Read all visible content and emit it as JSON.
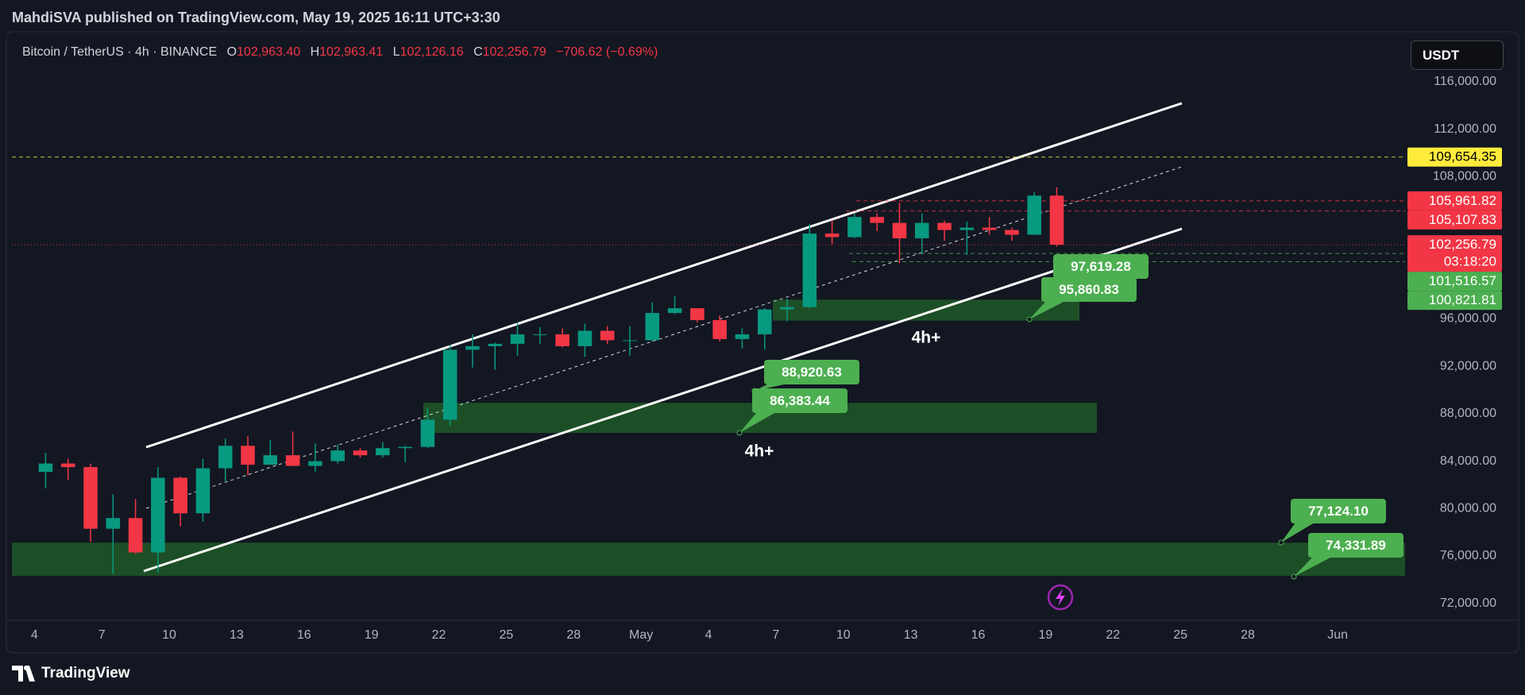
{
  "header": {
    "text": "MahdiSVA published on TradingView.com, May 19, 2025 16:11 UTC+3:30"
  },
  "footer": {
    "logo": "TradingView"
  },
  "chart_data": {
    "type": "candlestick",
    "symbol": "Bitcoin / TetherUS · 4h · BINANCE",
    "ohlc": [
      {
        "key": "O",
        "value": "102,963.40"
      },
      {
        "key": "H",
        "value": "102,963.41"
      },
      {
        "key": "L",
        "value": "102,126.16"
      },
      {
        "key": "C",
        "value": "102,256.79"
      }
    ],
    "change": "−706.62 (−0.69%)",
    "currency": "USDT",
    "up_color": "#089981",
    "down_color": "#f23645",
    "candles": {
      "x": [
        "04-04",
        "04-05",
        "04-06",
        "04-07",
        "04-08",
        "04-09",
        "04-10",
        "04-11",
        "04-12",
        "04-13",
        "04-14",
        "04-15",
        "04-16",
        "04-17",
        "04-18",
        "04-19",
        "04-20",
        "04-21",
        "04-22",
        "04-23",
        "04-24",
        "04-25",
        "04-26",
        "04-27",
        "04-28",
        "04-29",
        "04-30",
        "05-01",
        "05-02",
        "05-03",
        "05-04",
        "05-05",
        "05-06",
        "05-07",
        "05-08",
        "05-09",
        "05-10",
        "05-11",
        "05-12",
        "05-13",
        "05-14",
        "05-15",
        "05-16",
        "05-17",
        "05-18",
        "05-19"
      ],
      "open": [
        83100,
        83800,
        83500,
        78300,
        79200,
        76300,
        82600,
        79600,
        83400,
        85300,
        83700,
        84500,
        83600,
        84000,
        84900,
        84500,
        85100,
        85200,
        87500,
        93400,
        93700,
        93900,
        94700,
        94700,
        93700,
        95000,
        94200,
        94200,
        96500,
        96900,
        95900,
        94300,
        94700,
        96800,
        97000,
        103200,
        102900,
        104600,
        104100,
        102800,
        104100,
        103500,
        103700,
        103500,
        103100,
        106400
      ],
      "high": [
        84700,
        84200,
        83800,
        81200,
        80800,
        83500,
        82700,
        84200,
        85900,
        86100,
        85800,
        86500,
        85500,
        85400,
        85100,
        85600,
        85300,
        88500,
        93800,
        94700,
        94000,
        95700,
        95300,
        95200,
        95600,
        95400,
        95400,
        97400,
        97900,
        96900,
        96300,
        95200,
        96900,
        97700,
        104000,
        104300,
        104900,
        104900,
        105800,
        104900,
        104300,
        104200,
        104600,
        103700,
        106700,
        107100
      ],
      "low": [
        81700,
        82400,
        77200,
        74500,
        76200,
        74600,
        78500,
        78900,
        82300,
        82800,
        83700,
        83600,
        83100,
        83800,
        84300,
        84300,
        83900,
        85100,
        87000,
        91900,
        91700,
        92900,
        93900,
        93600,
        92800,
        93900,
        92900,
        94100,
        96400,
        95700,
        94100,
        93500,
        93400,
        95800,
        96900,
        102300,
        102800,
        103400,
        100700,
        101500,
        102600,
        101400,
        103100,
        102600,
        103100,
        102100
      ],
      "close": [
        83800,
        83500,
        78300,
        79200,
        76300,
        82600,
        79600,
        83400,
        85300,
        83700,
        84500,
        83600,
        84000,
        84900,
        84500,
        85100,
        85200,
        87500,
        93400,
        93700,
        93900,
        94700,
        94700,
        93700,
        95000,
        94200,
        94200,
        96500,
        96900,
        95900,
        94300,
        94700,
        96800,
        97000,
        103200,
        102900,
        104600,
        104100,
        102800,
        104100,
        103500,
        103700,
        103500,
        103100,
        106400,
        102256.79
      ]
    },
    "xlim": [
      "04-03",
      "06-04"
    ],
    "xticks": [
      {
        "value": "04-04",
        "label": "4"
      },
      {
        "value": "04-07",
        "label": "7"
      },
      {
        "value": "04-10",
        "label": "10"
      },
      {
        "value": "04-13",
        "label": "13"
      },
      {
        "value": "04-16",
        "label": "16"
      },
      {
        "value": "04-19",
        "label": "19"
      },
      {
        "value": "04-22",
        "label": "22"
      },
      {
        "value": "04-25",
        "label": "25"
      },
      {
        "value": "04-28",
        "label": "28"
      },
      {
        "value": "05-01",
        "label": "May"
      },
      {
        "value": "05-04",
        "label": "4"
      },
      {
        "value": "05-07",
        "label": "7"
      },
      {
        "value": "05-10",
        "label": "10"
      },
      {
        "value": "05-13",
        "label": "13"
      },
      {
        "value": "05-16",
        "label": "16"
      },
      {
        "value": "05-19",
        "label": "19"
      },
      {
        "value": "05-22",
        "label": "22"
      },
      {
        "value": "05-25",
        "label": "25"
      },
      {
        "value": "05-28",
        "label": "28"
      },
      {
        "value": "06-01",
        "label": "Jun"
      }
    ],
    "ylim": [
      70573,
      119886
    ],
    "yticks": [
      {
        "value": 72000,
        "label": "72,000.00"
      },
      {
        "value": 76000,
        "label": "76,000.00"
      },
      {
        "value": 80000,
        "label": "80,000.00"
      },
      {
        "value": 84000,
        "label": "84,000.00"
      },
      {
        "value": 88000,
        "label": "88,000.00"
      },
      {
        "value": 92000,
        "label": "92,000.00"
      },
      {
        "value": 96000,
        "label": "96,000.00"
      },
      {
        "value": 100000,
        "label": "100,000.00"
      },
      {
        "value": 104000,
        "label": "104,000.00"
      },
      {
        "value": 108000,
        "label": "108,000.00"
      },
      {
        "value": 112000,
        "label": "112,000.00"
      },
      {
        "value": 116000,
        "label": "116,000.00"
      }
    ],
    "levels": [
      {
        "value": 109654.35,
        "label": "109,654.35",
        "color": "#ffeb3b",
        "text_color": "#000000"
      },
      {
        "value": 105961.82,
        "label": "105,961.82",
        "color": "#f23645"
      },
      {
        "value": 105107.83,
        "label": "105,107.83",
        "color": "#f23645"
      },
      {
        "value": 102256.79,
        "label": "102,256.79",
        "countdown": "03:18:20",
        "color": "#f23645"
      },
      {
        "value": 101516.57,
        "label": "101,516.57",
        "color": "#4caf50"
      },
      {
        "value": 100821.81,
        "label": "100,821.81",
        "color": "#4caf50"
      }
    ],
    "zones": [
      {
        "top": {
          "value": 88920.63,
          "label": "88,920.63"
        },
        "bottom": {
          "value": 86383.44,
          "label": "86,383.44"
        },
        "note": "4h+"
      },
      {
        "top": {
          "value": 97619.28,
          "label": "97,619.28"
        },
        "bottom": {
          "value": 95860.83,
          "label": "95,860.83"
        },
        "note": "4h+"
      },
      {
        "top": {
          "value": 77124.1,
          "label": "77,124.10"
        },
        "bottom": {
          "value": 74331.89,
          "label": "74,331.89"
        }
      }
    ]
  }
}
